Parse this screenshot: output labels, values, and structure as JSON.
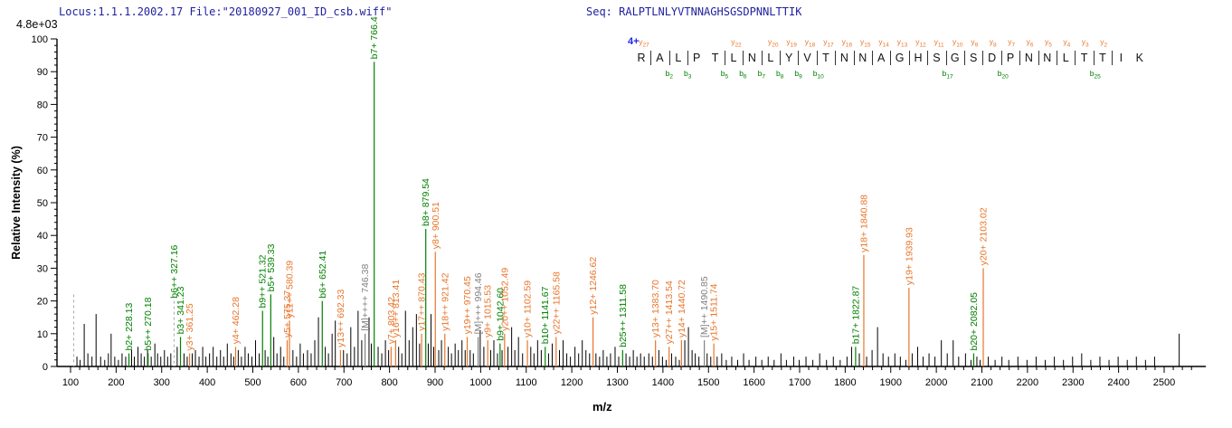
{
  "header": {
    "locus_file": "Locus:1.1.1.2002.17 File:\"20180927_001_ID_csb.wiff\"",
    "seq": "Seq: RALPTLNLYVTNNAGHSGSDPNNLTTIK"
  },
  "colors": {
    "b_ion": "#008000",
    "y_ion": "#e8762c",
    "precursor": "#808080",
    "noise": "#000000",
    "axis": "#000000",
    "title_text": "#1f1f9e",
    "charge_text": "#2222ee",
    "dashed_marker": "#aaaaaa"
  },
  "sequence_panel": {
    "charge_label": "4+",
    "residues": [
      "R",
      "A",
      "L",
      "P",
      "T",
      "L",
      "N",
      "L",
      "Y",
      "V",
      "T",
      "N",
      "N",
      "A",
      "G",
      "H",
      "S",
      "G",
      "S",
      "D",
      "P",
      "N",
      "N",
      "L",
      "T",
      "T",
      "I",
      "K"
    ],
    "gaps": [
      {
        "i": 1,
        "y": "y27"
      },
      {
        "i": 2,
        "b": "b2"
      },
      {
        "i": 3,
        "b": "b3"
      },
      {
        "i": 5,
        "b": "b5"
      },
      {
        "i": 6,
        "y": "y22",
        "b": "b6"
      },
      {
        "i": 7,
        "b": "b7"
      },
      {
        "i": 8,
        "y": "y20",
        "b": "b8"
      },
      {
        "i": 9,
        "y": "y19",
        "b": "b9"
      },
      {
        "i": 10,
        "y": "y18",
        "b": "b10"
      },
      {
        "i": 11,
        "y": "y17"
      },
      {
        "i": 12,
        "y": "y16"
      },
      {
        "i": 13,
        "y": "y15"
      },
      {
        "i": 14,
        "y": "y14"
      },
      {
        "i": 15,
        "y": "y13"
      },
      {
        "i": 16,
        "y": "y12"
      },
      {
        "i": 17,
        "y": "y11",
        "b": "b17"
      },
      {
        "i": 18,
        "y": "y10"
      },
      {
        "i": 19,
        "y": "y9"
      },
      {
        "i": 20,
        "y": "y8",
        "b": "b20"
      },
      {
        "i": 21,
        "y": "y7"
      },
      {
        "i": 22,
        "y": "y6"
      },
      {
        "i": 23,
        "y": "y5"
      },
      {
        "i": 24,
        "y": "y4"
      },
      {
        "i": 25,
        "y": "y3",
        "b": "b25"
      },
      {
        "i": 26,
        "y": "y2"
      }
    ]
  },
  "chart_data": {
    "type": "bar",
    "subtype": "ms2-mass-spectrum",
    "title": "",
    "xlabel": "m/z",
    "ylabel": "Relative Intensity (%)",
    "intensity_scale_note": "4.8e+03",
    "xlim": [
      70,
      2585
    ],
    "ylim": [
      0,
      100
    ],
    "x_major_ticks": [
      100,
      200,
      300,
      400,
      500,
      600,
      700,
      800,
      900,
      1000,
      1100,
      1200,
      1300,
      1400,
      1500,
      1600,
      1700,
      1800,
      1900,
      2000,
      2100,
      2200,
      2300,
      2400,
      2500
    ],
    "x_minor_step": 20,
    "y_major_ticks": [
      0,
      10,
      20,
      30,
      40,
      50,
      60,
      70,
      80,
      90,
      100
    ],
    "y_minor_step": 2,
    "labeled_peaks": [
      {
        "name": "b2+",
        "mz_text": "228.13",
        "mz": 228.13,
        "pct": 4,
        "type": "b"
      },
      {
        "name": "b5++",
        "mz_text": "270.18",
        "mz": 270.18,
        "pct": 4,
        "type": "b"
      },
      {
        "name": "b6++",
        "mz_text": "327.16",
        "mz": 327.16,
        "pct": 20,
        "type": "b",
        "dashed": true
      },
      {
        "name": "b3+",
        "mz_text": "341.23",
        "mz": 341.23,
        "pct": 9,
        "type": "b"
      },
      {
        "name": "y3+",
        "mz_text": "361.25",
        "mz": 361.25,
        "pct": 4,
        "type": "y"
      },
      {
        "name": "y4+",
        "mz_text": "462.28",
        "mz": 462.28,
        "pct": 6,
        "type": "y"
      },
      {
        "name": "b9++",
        "mz_text": "521.32",
        "mz": 521.32,
        "pct": 17,
        "type": "b"
      },
      {
        "name": "b5+",
        "mz_text": "539.33",
        "mz": 539.33,
        "pct": 22,
        "type": "b"
      },
      {
        "name": "y5+",
        "mz_text": "575.37",
        "mz": 575.37,
        "pct": 8,
        "type": "y"
      },
      {
        "name": "y11++",
        "mz_text": "580.39",
        "mz": 580.39,
        "pct": 14,
        "type": "y"
      },
      {
        "name": "b6+",
        "mz_text": "652.41",
        "mz": 652.41,
        "pct": 20,
        "type": "b"
      },
      {
        "name": "y13++",
        "mz_text": "692.33",
        "mz": 692.33,
        "pct": 5,
        "type": "y"
      },
      {
        "name": "[M]++++",
        "mz_text": "746.38",
        "mz": 746.38,
        "pct": 10,
        "type": "M"
      },
      {
        "name": "b7+",
        "mz_text": "766.4",
        "mz": 766.4,
        "pct": 93,
        "type": "b"
      },
      {
        "name": "y7+",
        "mz_text": "803.42",
        "mz": 803.42,
        "pct": 6,
        "type": "y"
      },
      {
        "name": "y16++",
        "mz_text": "813.41",
        "mz": 813.41,
        "pct": 8,
        "type": "y"
      },
      {
        "name": "y17++",
        "mz_text": "870.43",
        "mz": 870.43,
        "pct": 10,
        "type": "y"
      },
      {
        "name": "b8+",
        "mz_text": "879.54",
        "mz": 879.54,
        "pct": 42,
        "type": "b"
      },
      {
        "name": "y8+",
        "mz_text": "900.51",
        "mz": 900.51,
        "pct": 35,
        "type": "y"
      },
      {
        "name": "y18++",
        "mz_text": "921.42",
        "mz": 921.42,
        "pct": 10,
        "type": "y"
      },
      {
        "name": "y19++",
        "mz_text": "970.45",
        "mz": 970.45,
        "pct": 9,
        "type": "y"
      },
      {
        "name": "[M]+++",
        "mz_text": "994.46",
        "mz": 994.46,
        "pct": 9,
        "type": "M"
      },
      {
        "name": "y9+",
        "mz_text": "1015.53",
        "mz": 1015.53,
        "pct": 8,
        "type": "y"
      },
      {
        "name": "b9+",
        "mz_text": "1042.60",
        "mz": 1042.6,
        "pct": 7,
        "type": "b"
      },
      {
        "name": "y20++",
        "mz_text": "1052.49",
        "mz": 1052.49,
        "pct": 10,
        "type": "y"
      },
      {
        "name": "y10+",
        "mz_text": "1102.59",
        "mz": 1102.59,
        "pct": 8,
        "type": "y"
      },
      {
        "name": "b10+",
        "mz_text": "1141.67",
        "mz": 1141.67,
        "pct": 6,
        "type": "b"
      },
      {
        "name": "y22++",
        "mz_text": "1165.58",
        "mz": 1165.58,
        "pct": 9,
        "type": "y"
      },
      {
        "name": "y12+",
        "mz_text": "1246.62",
        "mz": 1246.62,
        "pct": 15,
        "type": "y"
      },
      {
        "name": "b25++",
        "mz_text": "1311.58",
        "mz": 1311.58,
        "pct": 5,
        "type": "b"
      },
      {
        "name": "y13+",
        "mz_text": "1383.70",
        "mz": 1383.7,
        "pct": 8,
        "type": "y"
      },
      {
        "name": "y27++",
        "mz_text": "1413.54",
        "mz": 1413.54,
        "pct": 6,
        "type": "y"
      },
      {
        "name": "y14+",
        "mz_text": "1440.72",
        "mz": 1440.72,
        "pct": 8,
        "type": "y"
      },
      {
        "name": "[M]++",
        "mz_text": "1490.85",
        "mz": 1490.85,
        "pct": 8,
        "type": "M"
      },
      {
        "name": "y15+",
        "mz_text": "1511.74",
        "mz": 1511.74,
        "pct": 7,
        "type": "y"
      },
      {
        "name": "b17+",
        "mz_text": "1822.87",
        "mz": 1822.87,
        "pct": 6,
        "type": "b"
      },
      {
        "name": "y18+",
        "mz_text": "1840.88",
        "mz": 1840.88,
        "pct": 34,
        "type": "y"
      },
      {
        "name": "y19+",
        "mz_text": "1939.93",
        "mz": 1939.93,
        "pct": 24,
        "type": "y"
      },
      {
        "name": "b20+",
        "mz_text": "2082.05",
        "mz": 2082.05,
        "pct": 4,
        "type": "b"
      },
      {
        "name": "y20+",
        "mz_text": "2103.02",
        "mz": 2103.02,
        "pct": 30,
        "type": "y"
      }
    ],
    "dashed_markers": [
      {
        "mz": 107,
        "pct": 22
      }
    ],
    "noise_peaks": [
      [
        114,
        3
      ],
      [
        121,
        2
      ],
      [
        130,
        13
      ],
      [
        138,
        4
      ],
      [
        147,
        3
      ],
      [
        156,
        16
      ],
      [
        166,
        3
      ],
      [
        175,
        2
      ],
      [
        183,
        4
      ],
      [
        189,
        10
      ],
      [
        197,
        3
      ],
      [
        205,
        2
      ],
      [
        213,
        4
      ],
      [
        221,
        3
      ],
      [
        234,
        5
      ],
      [
        240,
        3
      ],
      [
        248,
        6
      ],
      [
        255,
        4
      ],
      [
        262,
        3
      ],
      [
        269,
        5
      ],
      [
        277,
        3
      ],
      [
        285,
        7
      ],
      [
        291,
        4
      ],
      [
        298,
        3
      ],
      [
        306,
        5
      ],
      [
        313,
        3
      ],
      [
        320,
        4
      ],
      [
        334,
        6
      ],
      [
        349,
        4
      ],
      [
        356,
        3
      ],
      [
        367,
        4
      ],
      [
        374,
        5
      ],
      [
        382,
        3
      ],
      [
        390,
        6
      ],
      [
        397,
        3
      ],
      [
        405,
        4
      ],
      [
        413,
        6
      ],
      [
        421,
        3
      ],
      [
        429,
        5
      ],
      [
        436,
        3
      ],
      [
        444,
        7
      ],
      [
        452,
        4
      ],
      [
        458,
        3
      ],
      [
        468,
        5
      ],
      [
        475,
        3
      ],
      [
        483,
        6
      ],
      [
        490,
        4
      ],
      [
        498,
        3
      ],
      [
        506,
        8
      ],
      [
        514,
        4
      ],
      [
        527,
        5
      ],
      [
        533,
        3
      ],
      [
        546,
        9
      ],
      [
        553,
        4
      ],
      [
        561,
        6
      ],
      [
        568,
        3
      ],
      [
        588,
        5
      ],
      [
        596,
        3
      ],
      [
        604,
        7
      ],
      [
        611,
        4
      ],
      [
        620,
        5
      ],
      [
        628,
        4
      ],
      [
        636,
        8
      ],
      [
        644,
        15
      ],
      [
        659,
        6
      ],
      [
        666,
        4
      ],
      [
        674,
        10
      ],
      [
        681,
        14
      ],
      [
        699,
        5
      ],
      [
        707,
        4
      ],
      [
        715,
        12
      ],
      [
        723,
        6
      ],
      [
        731,
        17
      ],
      [
        739,
        8
      ],
      [
        755,
        15
      ],
      [
        760,
        7
      ],
      [
        775,
        6
      ],
      [
        783,
        4
      ],
      [
        791,
        8
      ],
      [
        798,
        5
      ],
      [
        820,
        6
      ],
      [
        827,
        4
      ],
      [
        835,
        17
      ],
      [
        843,
        8
      ],
      [
        851,
        12
      ],
      [
        859,
        16
      ],
      [
        866,
        7
      ],
      [
        885,
        7
      ],
      [
        891,
        16
      ],
      [
        897,
        6
      ],
      [
        908,
        5
      ],
      [
        914,
        8
      ],
      [
        929,
        6
      ],
      [
        936,
        4
      ],
      [
        944,
        7
      ],
      [
        951,
        5
      ],
      [
        959,
        8
      ],
      [
        966,
        5
      ],
      [
        977,
        5
      ],
      [
        984,
        4
      ],
      [
        999,
        11
      ],
      [
        1007,
        6
      ],
      [
        1022,
        5
      ],
      [
        1029,
        8
      ],
      [
        1037,
        4
      ],
      [
        1047,
        5
      ],
      [
        1060,
        6
      ],
      [
        1068,
        12
      ],
      [
        1075,
        5
      ],
      [
        1083,
        9
      ],
      [
        1092,
        4
      ],
      [
        1110,
        6
      ],
      [
        1117,
        4
      ],
      [
        1125,
        8
      ],
      [
        1133,
        5
      ],
      [
        1149,
        4
      ],
      [
        1157,
        7
      ],
      [
        1173,
        5
      ],
      [
        1181,
        8
      ],
      [
        1189,
        4
      ],
      [
        1197,
        3
      ],
      [
        1207,
        6
      ],
      [
        1215,
        4
      ],
      [
        1223,
        8
      ],
      [
        1231,
        5
      ],
      [
        1239,
        4
      ],
      [
        1253,
        4
      ],
      [
        1261,
        3
      ],
      [
        1269,
        5
      ],
      [
        1277,
        3
      ],
      [
        1285,
        4
      ],
      [
        1295,
        6
      ],
      [
        1303,
        3
      ],
      [
        1319,
        4
      ],
      [
        1327,
        3
      ],
      [
        1335,
        5
      ],
      [
        1343,
        3
      ],
      [
        1351,
        4
      ],
      [
        1359,
        3
      ],
      [
        1369,
        4
      ],
      [
        1377,
        3
      ],
      [
        1391,
        5
      ],
      [
        1399,
        3
      ],
      [
        1407,
        2
      ],
      [
        1419,
        4
      ],
      [
        1428,
        3
      ],
      [
        1436,
        2
      ],
      [
        1448,
        8
      ],
      [
        1456,
        12
      ],
      [
        1464,
        5
      ],
      [
        1471,
        4
      ],
      [
        1479,
        3
      ],
      [
        1497,
        4
      ],
      [
        1505,
        3
      ],
      [
        1519,
        3
      ],
      [
        1529,
        4
      ],
      [
        1539,
        2
      ],
      [
        1551,
        3
      ],
      [
        1564,
        2
      ],
      [
        1577,
        4
      ],
      [
        1589,
        2
      ],
      [
        1604,
        3
      ],
      [
        1617,
        2
      ],
      [
        1631,
        3
      ],
      [
        1644,
        2
      ],
      [
        1659,
        4
      ],
      [
        1671,
        2
      ],
      [
        1687,
        3
      ],
      [
        1699,
        2
      ],
      [
        1714,
        3
      ],
      [
        1729,
        2
      ],
      [
        1744,
        4
      ],
      [
        1759,
        2
      ],
      [
        1774,
        3
      ],
      [
        1789,
        2
      ],
      [
        1804,
        3
      ],
      [
        1814,
        6
      ],
      [
        1831,
        4
      ],
      [
        1847,
        3
      ],
      [
        1859,
        5
      ],
      [
        1871,
        12
      ],
      [
        1883,
        4
      ],
      [
        1895,
        3
      ],
      [
        1909,
        4
      ],
      [
        1921,
        3
      ],
      [
        1933,
        2
      ],
      [
        1947,
        4
      ],
      [
        1959,
        6
      ],
      [
        1971,
        3
      ],
      [
        1984,
        4
      ],
      [
        1997,
        3
      ],
      [
        2011,
        8
      ],
      [
        2024,
        4
      ],
      [
        2037,
        8
      ],
      [
        2049,
        3
      ],
      [
        2064,
        4
      ],
      [
        2076,
        2
      ],
      [
        2089,
        3
      ],
      [
        2096,
        2
      ],
      [
        2114,
        3
      ],
      [
        2129,
        2
      ],
      [
        2144,
        3
      ],
      [
        2159,
        2
      ],
      [
        2179,
        3
      ],
      [
        2199,
        2
      ],
      [
        2219,
        3
      ],
      [
        2239,
        2
      ],
      [
        2259,
        3
      ],
      [
        2279,
        2
      ],
      [
        2299,
        3
      ],
      [
        2319,
        4
      ],
      [
        2339,
        2
      ],
      [
        2359,
        3
      ],
      [
        2379,
        2
      ],
      [
        2399,
        3
      ],
      [
        2419,
        2
      ],
      [
        2439,
        3
      ],
      [
        2459,
        2
      ],
      [
        2479,
        3
      ],
      [
        2533,
        10
      ]
    ]
  }
}
